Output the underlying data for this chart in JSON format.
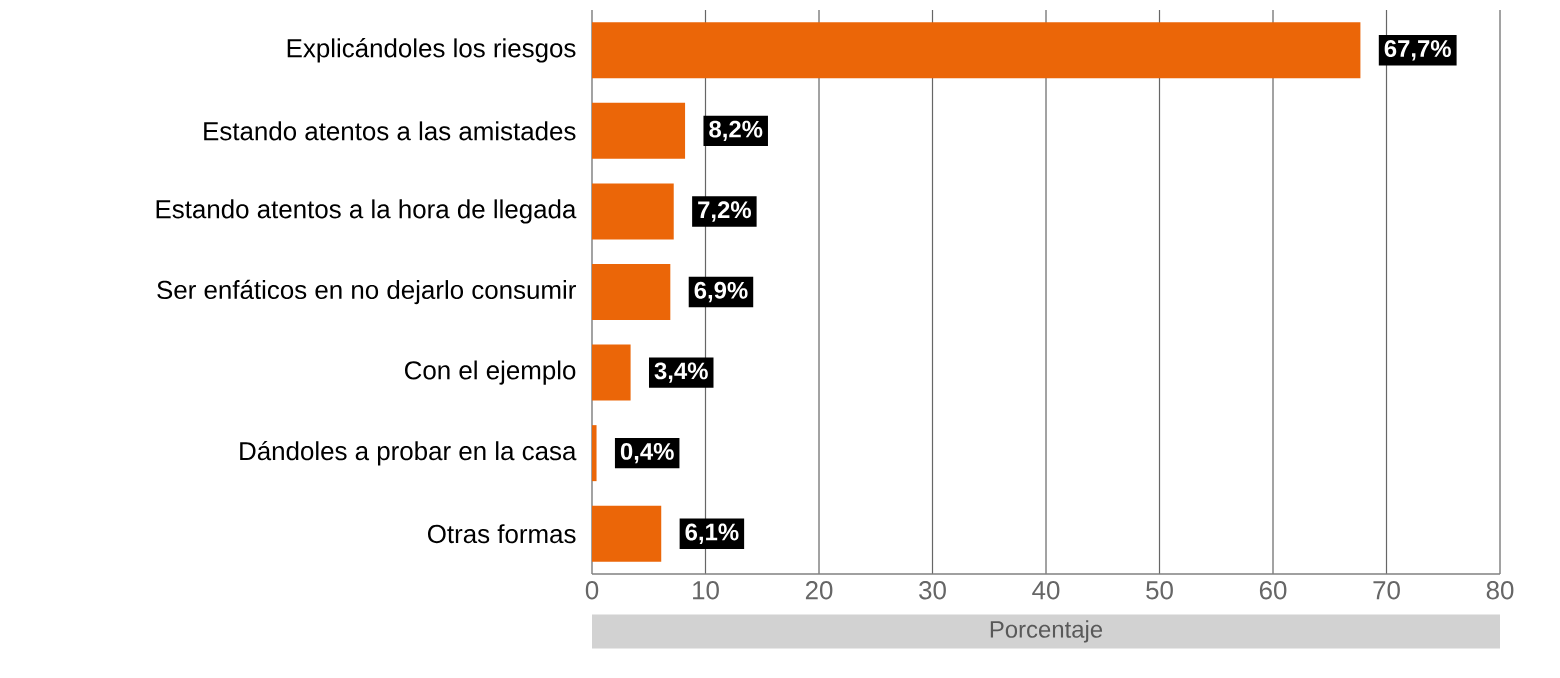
{
  "chart_data": {
    "type": "bar",
    "orientation": "horizontal",
    "color": "#eb6608",
    "categories": [
      "Explicándoles los riesgos",
      "Estando atentos a las amistades",
      "Estando atentos a la hora de llegada",
      "Ser enfáticos en no dejarlo consumir",
      "Con el ejemplo",
      "Dándoles a probar en la casa",
      "Otras formas"
    ],
    "values": [
      67.7,
      8.2,
      7.2,
      6.9,
      3.4,
      0.4,
      6.1
    ],
    "value_labels": [
      "67,7%",
      "8,2%",
      "7,2%",
      "6,9%",
      "3,4%",
      "0,4%",
      "6,1%"
    ],
    "xlabel": "Porcentaje",
    "xlim": [
      0,
      80
    ],
    "xticks": [
      0,
      10,
      20,
      30,
      40,
      50,
      60,
      70,
      80
    ],
    "grid": "x"
  }
}
